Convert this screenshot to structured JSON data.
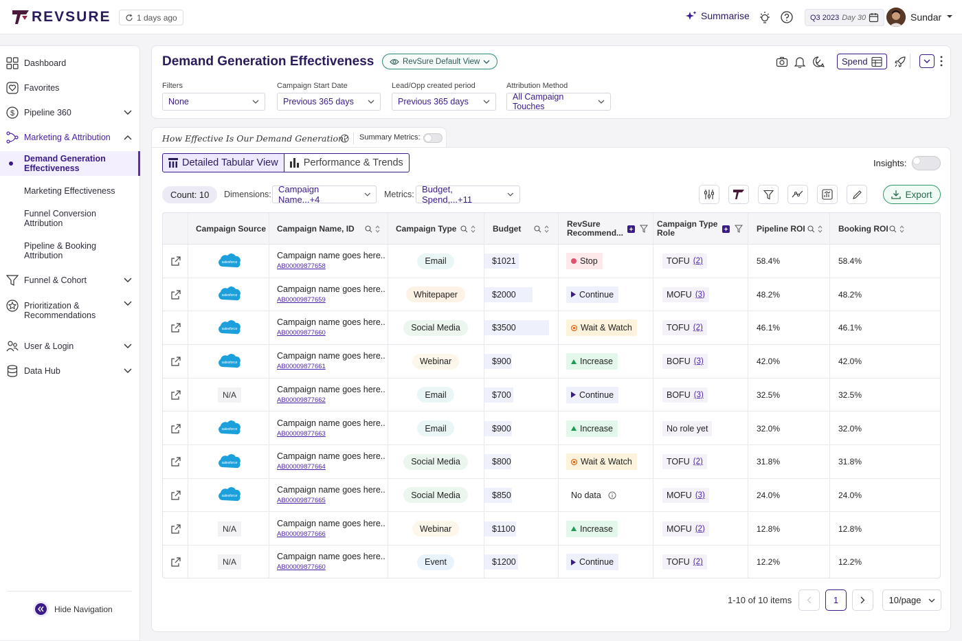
{
  "brand": "REVSURE",
  "header": {
    "updated": "1 days ago",
    "summarise": "Summarise",
    "quarter": "Q3 2023",
    "day": "Day 30",
    "user": "Sundar"
  },
  "sidebar": {
    "items": [
      "Dashboard",
      "Favorites",
      "Pipeline 360",
      "Marketing & Attribution"
    ],
    "sub": [
      "Demand Generation Effectiveness",
      "Marketing Effectiveness",
      "Funnel Conversion Attribution",
      "Pipeline & Booking Attribution"
    ],
    "items2": [
      "Funnel & Cohort",
      "Prioritization & Recommendations",
      "User & Login",
      "Data Hub"
    ],
    "hide": "Hide Navigation"
  },
  "page": {
    "title": "Demand Generation Effectiveness",
    "view": "RevSure Default View",
    "spend": "Spend",
    "filters": [
      {
        "label": "Filters",
        "value": "None"
      },
      {
        "label": "Campaign Start Date",
        "value": "Previous 365 days"
      },
      {
        "label": "Lead/Opp created period",
        "value": "Previous 365 days"
      },
      {
        "label": "Attribution Method",
        "value": "All Campaign Touches"
      }
    ]
  },
  "question": "How Effective Is Our Demand Generation?",
  "summary_metrics": "Summary Metrics:",
  "tabs": {
    "tabular": "Detailed Tabular View",
    "trends": "Performance & Trends"
  },
  "insights": "Insights:",
  "toolbar": {
    "count": "Count: 10",
    "dimensions_label": "Dimensions:",
    "dimensions": "Campaign Name...+4",
    "metrics_label": "Metrics:",
    "metrics": "Budget, Spend,...+11",
    "export": "Export"
  },
  "columns": [
    "Campaign Source",
    "Campaign Name, ID",
    "Campaign Type",
    "Budget",
    "RevSure Recommend...",
    "Campaign Type Role",
    "Pipeline ROI",
    "Booking ROI"
  ],
  "rows": [
    {
      "source": "salesforce",
      "name": "Campaign name goes here..",
      "id": "AB00009877658",
      "type": "Email",
      "budget": "$1021",
      "budget_pct": 0.41,
      "rec": "Stop",
      "role": "TOFU",
      "role_n": "(2)",
      "pipe": "58.4%",
      "book": "58.4%"
    },
    {
      "source": "salesforce",
      "name": "Campaign name goes here..",
      "id": "AB00009877659",
      "type": "Whitepaper",
      "budget": "$2000",
      "budget_pct": 0.67,
      "rec": "Continue",
      "role": "MOFU",
      "role_n": "(3)",
      "pipe": "48.2%",
      "book": "48.2%"
    },
    {
      "source": "salesforce",
      "name": "Campaign name goes here..",
      "id": "AB00009877660",
      "type": "Social Media",
      "budget": "$3500",
      "budget_pct": 1.0,
      "rec": "Wait & Watch",
      "role": "TOFU",
      "role_n": "(2)",
      "pipe": "46.1%",
      "book": "46.1%"
    },
    {
      "source": "salesforce",
      "name": "Campaign name goes here..",
      "id": "AB00009877661",
      "type": "Webinar",
      "budget": "$900",
      "budget_pct": 0.27,
      "rec": "Increase",
      "role": "BOFU",
      "role_n": "(3)",
      "pipe": "42.0%",
      "book": "42.0%"
    },
    {
      "source": "N/A",
      "name": "Campaign name goes here..",
      "id": "AB00009877662",
      "type": "Email",
      "budget": "$700",
      "budget_pct": 0.3,
      "rec": "Continue",
      "role": "BOFU",
      "role_n": "(3)",
      "pipe": "32.5%",
      "book": "32.5%"
    },
    {
      "source": "salesforce",
      "name": "Campaign name goes here..",
      "id": "AB00009877663",
      "type": "Email",
      "budget": "$900",
      "budget_pct": 0.27,
      "rec": "Increase",
      "role": "No role yet",
      "role_n": "",
      "pipe": "32.0%",
      "book": "32.0%"
    },
    {
      "source": "salesforce",
      "name": "Campaign name goes here..",
      "id": "AB00009877664",
      "type": "Social Media",
      "budget": "$800",
      "budget_pct": 0.25,
      "rec": "Wait & Watch",
      "role": "TOFU",
      "role_n": "(2)",
      "pipe": "31.8%",
      "book": "31.8%"
    },
    {
      "source": "salesforce",
      "name": "Campaign name goes here..",
      "id": "AB00009877665",
      "type": "Social Media",
      "budget": "$850",
      "budget_pct": 0.27,
      "rec": "No data",
      "role": "MOFU",
      "role_n": "(3)",
      "pipe": "24.0%",
      "book": "24.0%"
    },
    {
      "source": "N/A",
      "name": "Campaign name goes here..",
      "id": "AB00009877666",
      "type": "Webinar",
      "budget": "$1100",
      "budget_pct": 0.35,
      "rec": "Increase",
      "role": "MOFU",
      "role_n": "(2)",
      "pipe": "12.8%",
      "book": "12.8%"
    },
    {
      "source": "N/A",
      "name": "Campaign name goes here..",
      "id": "AB00009877660",
      "type": "Event",
      "budget": "$1200",
      "budget_pct": 0.39,
      "rec": "Continue",
      "role": "TOFU",
      "role_n": "(2)",
      "pipe": "12.2%",
      "book": "12.2%"
    }
  ],
  "pagination": {
    "summary": "1-10 of 10 items",
    "page": "1",
    "per_page": "10/page"
  },
  "colors": {
    "accent": "#3b1a8a",
    "stop": "#fde8ea",
    "continue": "#eef0fb",
    "wait": "#fdf3dc",
    "increase": "#e3f7ea",
    "nodata": "#ffffff"
  }
}
